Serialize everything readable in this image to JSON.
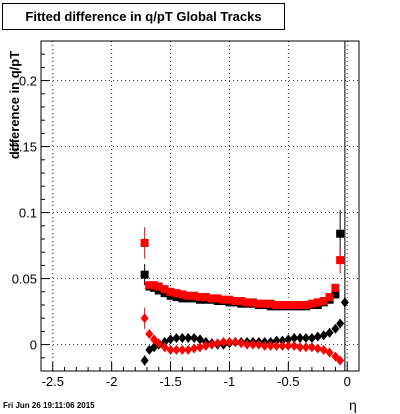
{
  "title": "Fitted difference in q/pT  Global Tracks",
  "footer_text": "Fri Jun 26 19:11:06 2015",
  "chart_data": {
    "type": "scatter",
    "title": "Fitted difference in q/pT  Global Tracks",
    "xlabel": "η",
    "ylabel": "difference in q/pT",
    "xlim": [
      -2.6,
      0.1
    ],
    "ylim": [
      -0.02,
      0.23
    ],
    "x_ticks": [
      -2.5,
      -2,
      -1.5,
      -1,
      -0.5,
      0
    ],
    "x_tick_labels": [
      "-2.5",
      "-2",
      "-1.5",
      "-1",
      "-0.5",
      "0"
    ],
    "y_ticks": [
      0,
      0.05,
      0.1,
      0.15,
      0.2
    ],
    "y_tick_labels": [
      "0",
      "0.05",
      "0.1",
      "0.15",
      "0.2"
    ],
    "grid": true,
    "colors": {
      "black": "#000000",
      "red": "#ff0000"
    },
    "series": [
      {
        "marker": "square",
        "color": "#000000",
        "x": [
          -1.72,
          -1.68,
          -1.64,
          -1.6,
          -1.55,
          -1.5,
          -1.45,
          -1.4,
          -1.35,
          -1.3,
          -1.25,
          -1.2,
          -1.15,
          -1.1,
          -1.05,
          -1.0,
          -0.95,
          -0.9,
          -0.85,
          -0.8,
          -0.75,
          -0.7,
          -0.65,
          -0.6,
          -0.55,
          -0.5,
          -0.45,
          -0.4,
          -0.35,
          -0.3,
          -0.25,
          -0.2,
          -0.15,
          -0.1,
          -0.06
        ],
        "y": [
          0.053,
          0.044,
          0.043,
          0.041,
          0.039,
          0.037,
          0.036,
          0.035,
          0.035,
          0.035,
          0.034,
          0.034,
          0.034,
          0.033,
          0.033,
          0.032,
          0.032,
          0.031,
          0.031,
          0.031,
          0.03,
          0.03,
          0.029,
          0.029,
          0.029,
          0.029,
          0.029,
          0.029,
          0.029,
          0.03,
          0.03,
          0.032,
          0.034,
          0.038,
          0.084
        ],
        "err": [
          0.008,
          0.002,
          0.001,
          0.001,
          0.001,
          0.001,
          0.001,
          0.001,
          0.001,
          0.001,
          0.001,
          0.001,
          0.001,
          0.001,
          0.001,
          0.001,
          0.001,
          0.001,
          0.001,
          0.001,
          0.001,
          0.001,
          0.001,
          0.001,
          0.001,
          0.001,
          0.001,
          0.001,
          0.001,
          0.001,
          0.001,
          0.001,
          0.001,
          0.003,
          0.018
        ]
      },
      {
        "marker": "square",
        "color": "#ff0000",
        "x": [
          -1.72,
          -1.68,
          -1.64,
          -1.6,
          -1.55,
          -1.5,
          -1.45,
          -1.4,
          -1.35,
          -1.3,
          -1.25,
          -1.2,
          -1.15,
          -1.1,
          -1.05,
          -1.0,
          -0.95,
          -0.9,
          -0.85,
          -0.8,
          -0.75,
          -0.7,
          -0.65,
          -0.6,
          -0.55,
          -0.5,
          -0.45,
          -0.4,
          -0.35,
          -0.3,
          -0.25,
          -0.2,
          -0.15,
          -0.1,
          -0.06
        ],
        "y": [
          0.077,
          0.045,
          0.045,
          0.044,
          0.042,
          0.04,
          0.039,
          0.038,
          0.037,
          0.037,
          0.036,
          0.036,
          0.035,
          0.035,
          0.034,
          0.034,
          0.033,
          0.033,
          0.032,
          0.032,
          0.031,
          0.031,
          0.031,
          0.03,
          0.03,
          0.03,
          0.03,
          0.03,
          0.03,
          0.031,
          0.032,
          0.033,
          0.036,
          0.043,
          0.064
        ],
        "err": [
          0.012,
          0.002,
          0.001,
          0.001,
          0.001,
          0.001,
          0.001,
          0.001,
          0.001,
          0.001,
          0.001,
          0.001,
          0.001,
          0.001,
          0.001,
          0.001,
          0.001,
          0.001,
          0.001,
          0.001,
          0.001,
          0.001,
          0.001,
          0.001,
          0.001,
          0.001,
          0.001,
          0.001,
          0.001,
          0.001,
          0.001,
          0.001,
          0.001,
          0.003,
          0.01
        ]
      },
      {
        "marker": "diamond",
        "color": "#000000",
        "x": [
          -1.72,
          -1.68,
          -1.64,
          -1.6,
          -1.55,
          -1.5,
          -1.45,
          -1.4,
          -1.35,
          -1.3,
          -1.25,
          -1.2,
          -1.15,
          -1.1,
          -1.05,
          -1.0,
          -0.95,
          -0.9,
          -0.85,
          -0.8,
          -0.75,
          -0.7,
          -0.65,
          -0.6,
          -0.55,
          -0.5,
          -0.45,
          -0.4,
          -0.35,
          -0.3,
          -0.25,
          -0.2,
          -0.15,
          -0.1,
          -0.06,
          -0.02
        ],
        "y": [
          -0.012,
          -0.004,
          -0.002,
          0.0,
          0.002,
          0.004,
          0.005,
          0.005,
          0.005,
          0.005,
          0.004,
          0.002,
          0.001,
          0.0,
          0.0,
          0.001,
          0.002,
          0.002,
          0.002,
          0.002,
          0.002,
          0.002,
          0.002,
          0.003,
          0.003,
          0.004,
          0.005,
          0.005,
          0.005,
          0.005,
          0.006,
          0.007,
          0.009,
          0.012,
          0.016,
          0.032
        ],
        "err": [
          0.004,
          0.002,
          0.001,
          0.001,
          0.001,
          0.001,
          0.001,
          0.001,
          0.001,
          0.001,
          0.001,
          0.001,
          0.001,
          0.001,
          0.001,
          0.001,
          0.001,
          0.001,
          0.001,
          0.001,
          0.001,
          0.001,
          0.001,
          0.001,
          0.001,
          0.001,
          0.001,
          0.001,
          0.001,
          0.001,
          0.001,
          0.001,
          0.001,
          0.001,
          0.003,
          0.004
        ]
      },
      {
        "marker": "diamond",
        "color": "#ff0000",
        "x": [
          -1.72,
          -1.68,
          -1.64,
          -1.6,
          -1.55,
          -1.5,
          -1.45,
          -1.4,
          -1.35,
          -1.3,
          -1.25,
          -1.2,
          -1.15,
          -1.1,
          -1.05,
          -1.0,
          -0.95,
          -0.9,
          -0.85,
          -0.8,
          -0.75,
          -0.7,
          -0.65,
          -0.6,
          -0.55,
          -0.5,
          -0.45,
          -0.4,
          -0.35,
          -0.3,
          -0.25,
          -0.2,
          -0.15,
          -0.1,
          -0.06
        ],
        "y": [
          0.02,
          0.008,
          0.004,
          0.001,
          -0.002,
          -0.004,
          -0.004,
          -0.004,
          -0.004,
          -0.003,
          -0.002,
          -0.001,
          0.0,
          0.001,
          0.002,
          0.002,
          0.002,
          0.001,
          0.0,
          0.0,
          0.0,
          -0.001,
          -0.001,
          -0.001,
          -0.001,
          -0.001,
          -0.001,
          -0.002,
          -0.002,
          -0.002,
          -0.003,
          -0.004,
          -0.006,
          -0.009,
          -0.012
        ],
        "err": [
          0.008,
          0.002,
          0.001,
          0.001,
          0.001,
          0.001,
          0.001,
          0.001,
          0.001,
          0.001,
          0.001,
          0.001,
          0.001,
          0.001,
          0.001,
          0.001,
          0.001,
          0.001,
          0.001,
          0.001,
          0.001,
          0.001,
          0.001,
          0.001,
          0.001,
          0.001,
          0.001,
          0.001,
          0.001,
          0.001,
          0.001,
          0.001,
          0.001,
          0.001,
          0.002
        ]
      }
    ],
    "vertical_line_x": -0.02
  }
}
